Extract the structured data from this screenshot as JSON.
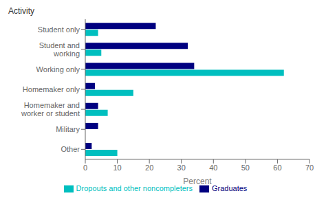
{
  "chart_data": {
    "type": "bar",
    "orientation": "horizontal",
    "categories": [
      "Student only",
      "Student and\nworking",
      "Working only",
      "Homemaker only",
      "Homemaker and\nworker or student",
      "Military",
      "Other"
    ],
    "series": [
      {
        "name": "Graduates",
        "color": "#000080",
        "values": [
          22,
          32,
          34,
          3,
          4,
          4,
          2
        ]
      },
      {
        "name": "Dropouts and other noncompleters",
        "color": "#00BFBF",
        "values": [
          4,
          5,
          62,
          15,
          7,
          0,
          10
        ]
      }
    ],
    "xlabel": "Percent",
    "ylabel": "Activity",
    "xlim": [
      0,
      70
    ],
    "xticks": [
      0,
      10,
      20,
      30,
      40,
      50,
      60,
      70
    ],
    "grid": false,
    "legend": "bottom"
  }
}
